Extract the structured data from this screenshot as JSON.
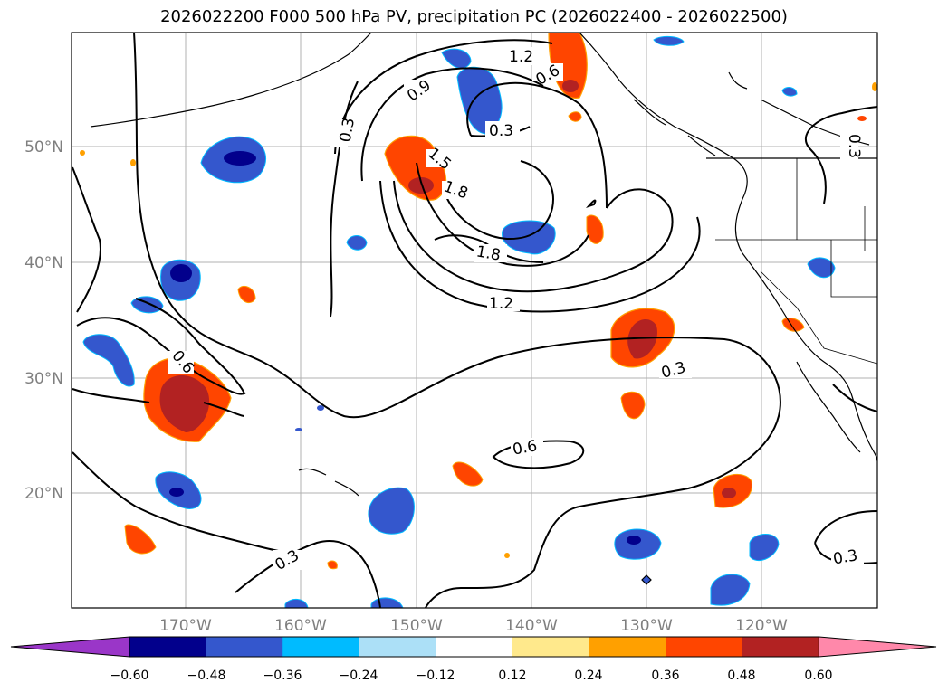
{
  "title": "2026022200 F000 500 hPa PV, precipitation PC (2026022400 - 2026022500)",
  "lon_ticks": [
    "170°W",
    "160°W",
    "150°W",
    "140°W",
    "130°W",
    "120°W"
  ],
  "lat_ticks": [
    "50°N",
    "40°N",
    "30°N",
    "20°N"
  ],
  "colorbar": {
    "ticks": [
      "−0.60",
      "−0.48",
      "−0.36",
      "−0.24",
      "−0.12",
      "0.12",
      "0.24",
      "0.36",
      "0.48",
      "0.60"
    ],
    "colors": [
      "#9a36c8",
      "#02008c",
      "#3457cd",
      "#00bbff",
      "#ace0f7",
      "#ffffff",
      "#ffe98c",
      "#ffa000",
      "#ff4500",
      "#b22222",
      "#ff88aa"
    ]
  },
  "contour_labels": [
    "1.2",
    "0.6",
    "0.9",
    "0.3",
    "0.3",
    "1.5",
    "1.8",
    "1.8",
    "1.2",
    "0.3",
    "0.6",
    "0.6",
    "0.3",
    "0.3",
    "0.3"
  ]
}
